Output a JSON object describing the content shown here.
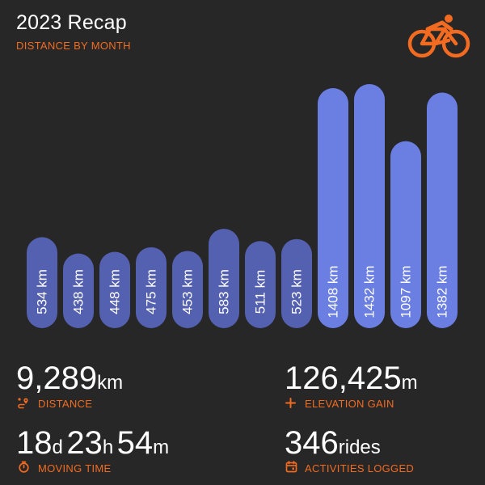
{
  "header": {
    "title": "2023 Recap",
    "subtitle": "DISTANCE BY MONTH",
    "logo_icon": "cyclist-icon"
  },
  "colors": {
    "background": "#272727",
    "accent": "#f26b21",
    "bar_low": "#5460b0",
    "bar_high": "#6b7fe3"
  },
  "chart_data": {
    "type": "bar",
    "title": "",
    "xlabel": "",
    "ylabel": "",
    "unit": "km",
    "values": [
      534,
      438,
      448,
      475,
      453,
      583,
      511,
      523,
      1408,
      1432,
      1097,
      1382
    ],
    "labels": [
      "534 km",
      "438 km",
      "448 km",
      "475 km",
      "453 km",
      "583 km",
      "511 km",
      "523 km",
      "1408 km",
      "1432 km",
      "1097 km",
      "1382 km"
    ],
    "ylim": [
      0,
      1432
    ],
    "grid": false,
    "legend": "none"
  },
  "stats": {
    "distance": {
      "value": "9,289",
      "unit": "km",
      "label": "DISTANCE",
      "icon": "route-pin-icon"
    },
    "elevation": {
      "value": "126,425",
      "unit": "m",
      "label": "ELEVATION GAIN",
      "icon": "plus-icon"
    },
    "moving_time": {
      "days": "18",
      "days_unit": "d",
      "hours": "23",
      "hours_unit": "h",
      "minutes": "54",
      "minutes_unit": "m",
      "label": "MOVING TIME",
      "icon": "stopwatch-icon"
    },
    "activities": {
      "value": "346",
      "unit": "rides",
      "label": "ACTIVITIES LOGGED",
      "icon": "calendar-icon"
    }
  }
}
